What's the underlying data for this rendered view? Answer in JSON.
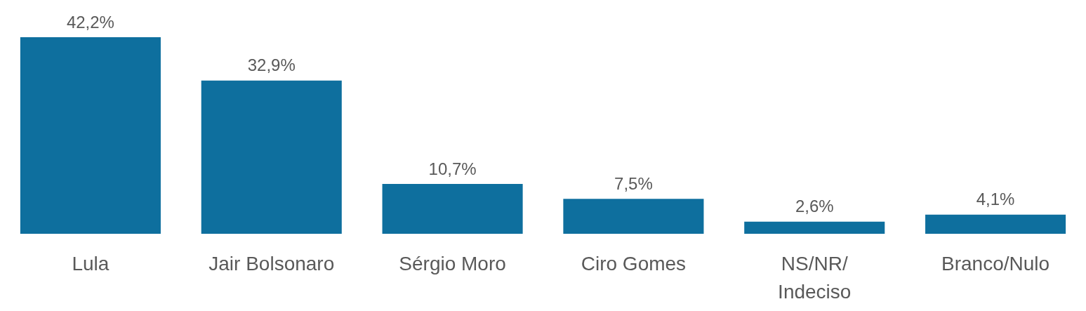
{
  "chart_data": {
    "type": "bar",
    "categories": [
      "Lula",
      "Jair Bolsonaro",
      "Sérgio Moro",
      "Ciro Gomes",
      "NS/NR/\nIndeciso",
      "Branco/Nulo"
    ],
    "values": [
      42.2,
      32.9,
      10.7,
      7.5,
      2.6,
      4.1
    ],
    "value_labels": [
      "42,2%",
      "32,9%",
      "10,7%",
      "7,5%",
      "2,6%",
      "4,1%"
    ],
    "color": "#0e6f9e"
  }
}
